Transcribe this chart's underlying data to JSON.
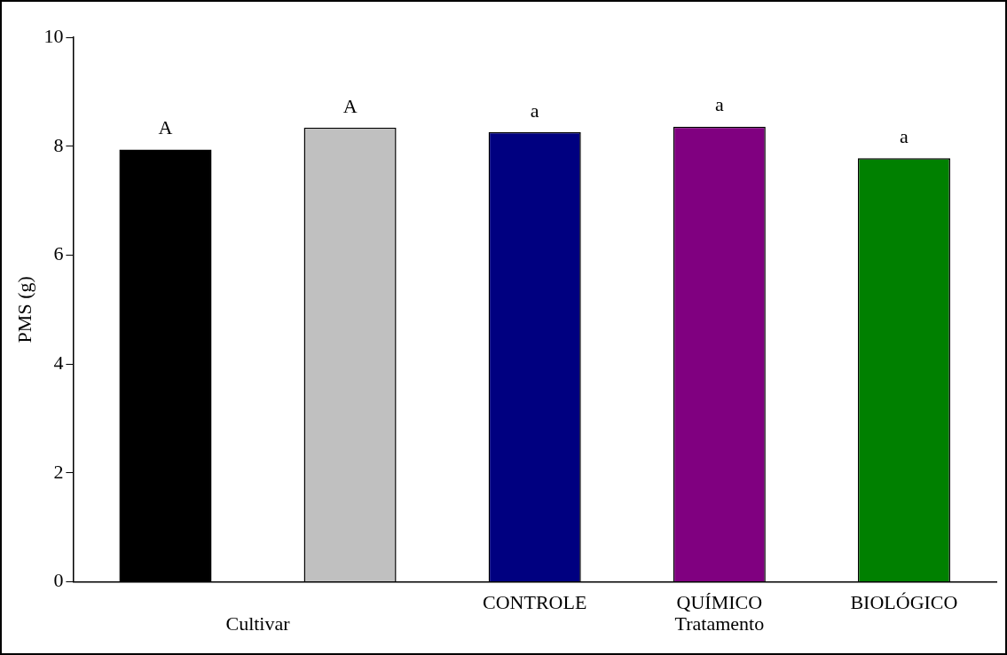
{
  "chart_data": {
    "type": "bar",
    "ylabel": "PMS (g)",
    "categories": [
      null,
      null,
      "CONTROLE",
      "QUÍMICO",
      "BIOLÓGICO"
    ],
    "values": [
      7.94,
      8.34,
      8.26,
      8.36,
      7.78
    ],
    "colors": [
      "#000000",
      "#c0c0c0",
      "#000080",
      "#800080",
      "#008000"
    ],
    "value_labels": [
      "A",
      "A",
      "a",
      "a",
      "a"
    ],
    "ylim": [
      0,
      10
    ],
    "yticks": [
      0,
      2,
      4,
      6,
      8,
      10
    ],
    "grid": false,
    "legend": false,
    "annotations": [
      "Cultivar",
      "Tratamento"
    ]
  }
}
